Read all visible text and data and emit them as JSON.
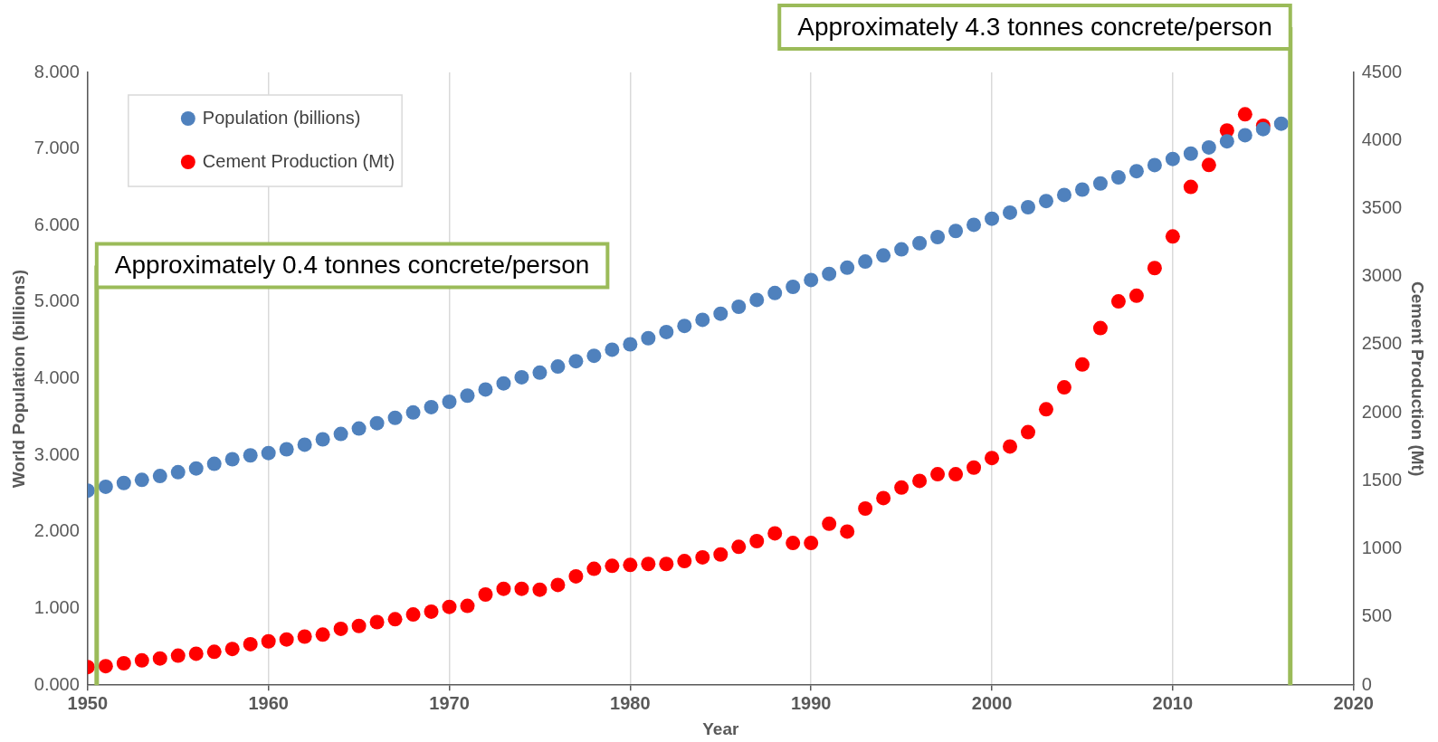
{
  "chart_data": {
    "type": "scatter",
    "xlabel": "Year",
    "ylabel": "World Population (billions)",
    "y2label": "Cement Production (Mt)",
    "x": [
      1950,
      1951,
      1952,
      1953,
      1954,
      1955,
      1956,
      1957,
      1958,
      1959,
      1960,
      1961,
      1962,
      1963,
      1964,
      1965,
      1966,
      1967,
      1968,
      1969,
      1970,
      1971,
      1972,
      1973,
      1974,
      1975,
      1976,
      1977,
      1978,
      1979,
      1980,
      1981,
      1982,
      1983,
      1984,
      1985,
      1986,
      1987,
      1988,
      1989,
      1990,
      1991,
      1992,
      1993,
      1994,
      1995,
      1996,
      1997,
      1998,
      1999,
      2000,
      2001,
      2002,
      2003,
      2004,
      2005,
      2006,
      2007,
      2008,
      2009,
      2010,
      2011,
      2012,
      2013,
      2014,
      2015,
      2016
    ],
    "series": [
      {
        "name": "Population (billions)",
        "color": "#4f81bd",
        "values": [
          2.54,
          2.59,
          2.64,
          2.68,
          2.73,
          2.78,
          2.83,
          2.89,
          2.95,
          3.0,
          3.03,
          3.08,
          3.14,
          3.21,
          3.28,
          3.35,
          3.42,
          3.49,
          3.56,
          3.63,
          3.7,
          3.78,
          3.86,
          3.94,
          4.02,
          4.08,
          4.16,
          4.23,
          4.3,
          4.38,
          4.45,
          4.53,
          4.61,
          4.69,
          4.77,
          4.85,
          4.94,
          5.03,
          5.12,
          5.2,
          5.29,
          5.37,
          5.45,
          5.53,
          5.61,
          5.69,
          5.77,
          5.85,
          5.93,
          6.01,
          6.09,
          6.17,
          6.24,
          6.32,
          6.4,
          6.47,
          6.55,
          6.63,
          6.71,
          6.79,
          6.87,
          6.94,
          7.02,
          7.1,
          7.18,
          7.26,
          7.33
        ]
      },
      {
        "name": "Cement Production (Mt)",
        "color": "#ff0000",
        "axis": "y2",
        "values": [
          133,
          140,
          161,
          182,
          196,
          217,
          231,
          245,
          266,
          301,
          322,
          336,
          357,
          371,
          414,
          435,
          463,
          484,
          519,
          540,
          575,
          582,
          666,
          708,
          708,
          701,
          736,
          799,
          855,
          876,
          883,
          890,
          890,
          911,
          939,
          960,
          1016,
          1058,
          1115,
          1044,
          1044,
          1185,
          1128,
          1297,
          1374,
          1451,
          1500,
          1549,
          1549,
          1598,
          1668,
          1753,
          1858,
          2026,
          2187,
          2355,
          2622,
          2818,
          2860,
          3063,
          3295,
          3659,
          3820,
          4073,
          4192,
          4108,
          null
        ]
      }
    ],
    "xlim": [
      1950,
      2020
    ],
    "xticks": [
      1950,
      1960,
      1970,
      1980,
      1990,
      2000,
      2010,
      2020
    ],
    "ylim": [
      0,
      8
    ],
    "yticks": [
      {
        "value": 0,
        "label": "0.000"
      },
      {
        "value": 1,
        "label": "1.000"
      },
      {
        "value": 2,
        "label": "2.000"
      },
      {
        "value": 3,
        "label": "3.000"
      },
      {
        "value": 4,
        "label": "4.000"
      },
      {
        "value": 5,
        "label": "5.000"
      },
      {
        "value": 6,
        "label": "6.000"
      },
      {
        "value": 7,
        "label": "7.000"
      },
      {
        "value": 8,
        "label": "8.000"
      }
    ],
    "y2lim": [
      0,
      4500
    ],
    "y2ticks": [
      0,
      500,
      1000,
      1500,
      2000,
      2500,
      3000,
      3500,
      4000,
      4500
    ],
    "ref_lines": [
      {
        "axis": "x",
        "value": 1950.5,
        "label": "Approximately 0.4 tonnes concrete/person",
        "color": "#9bbb59"
      },
      {
        "axis": "x",
        "value": 2016.5,
        "label": "Approximately 4.3 tonnes concrete/person",
        "color": "#9bbb59"
      }
    ],
    "grid": "x",
    "legend": "top left",
    "marker": "circle"
  }
}
